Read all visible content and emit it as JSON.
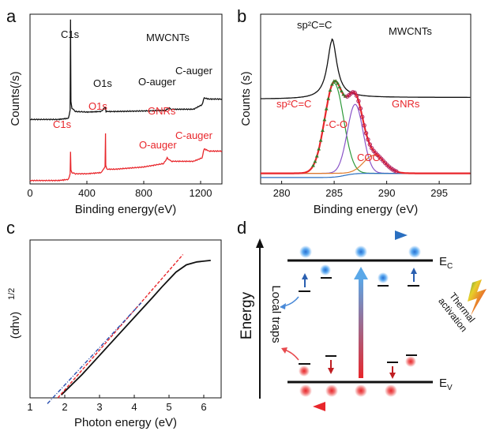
{
  "panels": {
    "a": {
      "letter": "a"
    },
    "b": {
      "letter": "b"
    },
    "c": {
      "letter": "c"
    },
    "d": {
      "letter": "d"
    }
  },
  "colors": {
    "black": "#111111",
    "red": "#e8262b",
    "blue": "#2a6fc0",
    "green": "#2e9a3a",
    "purple": "#8a55c8",
    "orange": "#e07b2a"
  },
  "chart_data": [
    {
      "type": "line",
      "panel": "a",
      "xlabel": "Binding energy(eV)",
      "ylabel": "Counts(/s)",
      "xlim": [
        0,
        1350
      ],
      "xticks": [
        "0",
        "400",
        "800",
        "1200"
      ],
      "series": [
        {
          "name": "MWCNTs",
          "color": "#111111",
          "x": [
            0,
            200,
            270,
            282,
            285,
            288,
            295,
            320,
            400,
            500,
            531,
            533,
            535,
            600,
            800,
            950,
            980,
            1000,
            1150,
            1210,
            1225,
            1260,
            1350
          ],
          "y": [
            0.12,
            0.12,
            0.13,
            0.2,
            1.0,
            0.28,
            0.22,
            0.19,
            0.185,
            0.19,
            0.23,
            0.2,
            0.19,
            0.19,
            0.195,
            0.2,
            0.22,
            0.21,
            0.21,
            0.25,
            0.31,
            0.3,
            0.3
          ]
        },
        {
          "name": "GNRs",
          "color": "#e8262b",
          "x": [
            0,
            200,
            270,
            282,
            285,
            288,
            295,
            320,
            400,
            500,
            528,
            531,
            533,
            540,
            600,
            800,
            940,
            965,
            980,
            1000,
            1150,
            1210,
            1225,
            1260,
            1350
          ],
          "y": [
            -0.42,
            -0.42,
            -0.41,
            -0.36,
            -0.17,
            -0.33,
            -0.35,
            -0.36,
            -0.36,
            -0.35,
            -0.3,
            0.0,
            -0.29,
            -0.32,
            -0.32,
            -0.3,
            -0.27,
            -0.22,
            -0.24,
            -0.25,
            -0.25,
            -0.22,
            -0.14,
            -0.16,
            -0.16
          ]
        }
      ],
      "annotations": {
        "mw_c1s": "C1s",
        "mw_o1s": "O1s",
        "mw_oauger": "O-auger",
        "mw_cauger": "C-auger",
        "mw_name": "MWCNTs",
        "gn_c1s": "C1s",
        "gn_o1s": "O1s",
        "gn_oauger": "O-auger",
        "gn_cauger": "C-auger",
        "gn_name": "GNRs"
      }
    },
    {
      "type": "line",
      "panel": "b",
      "xlabel": "Binding energy (eV)",
      "ylabel": "Counts (s)",
      "xlim": [
        278,
        298
      ],
      "xticks": [
        280,
        285,
        290,
        295
      ],
      "mwcnt_peak": {
        "center": 284.8,
        "height": 0.55,
        "width": 0.55,
        "baseline": 0.05
      },
      "gnr_components": [
        {
          "label": "sp2C=C",
          "center": 285.0,
          "height": 0.85,
          "sigma": 0.9,
          "color": "#2e9a3a"
        },
        {
          "label": "-C-O",
          "center": 287.0,
          "height": 0.65,
          "sigma": 0.75,
          "color": "#8a55c8"
        },
        {
          "label": "COO",
          "center": 288.8,
          "height": 0.17,
          "sigma": 1.0,
          "color": "#e07b2a"
        }
      ],
      "annotations": {
        "sp2_top": "sp²C=C",
        "mw_name": "MWCNTs",
        "sp2_red": "sp²C=C",
        "co": "-C-O",
        "coo": "COO",
        "gn_name": "GNRs"
      }
    },
    {
      "type": "line",
      "panel": "c",
      "xlabel": "Photon energy (eV)",
      "ylabel": "(αhν)^1/2",
      "xlim": [
        1,
        6.5
      ],
      "xticks": [
        1,
        2,
        3,
        4,
        5,
        6
      ],
      "curve": {
        "x": [
          1.9,
          2.5,
          3.0,
          3.5,
          4.0,
          4.5,
          4.8,
          5.0,
          5.2,
          5.5,
          5.8,
          6.2
        ],
        "y": [
          0.0,
          0.14,
          0.27,
          0.4,
          0.53,
          0.66,
          0.74,
          0.79,
          0.84,
          0.89,
          0.91,
          0.92
        ]
      },
      "red_fit": {
        "x": [
          1.8,
          5.4
        ],
        "y": [
          -0.02,
          0.96
        ]
      },
      "blue_fit": {
        "x": [
          1.5,
          4.2
        ],
        "y": [
          -0.06,
          0.63
        ]
      }
    }
  ],
  "diagram": {
    "ylabel": "Energy",
    "ec": "E",
    "ec_sub": "C",
    "ev": "E",
    "ev_sub": "V",
    "traps": "Local traps",
    "thermal": [
      "Thermal",
      "activation"
    ]
  }
}
